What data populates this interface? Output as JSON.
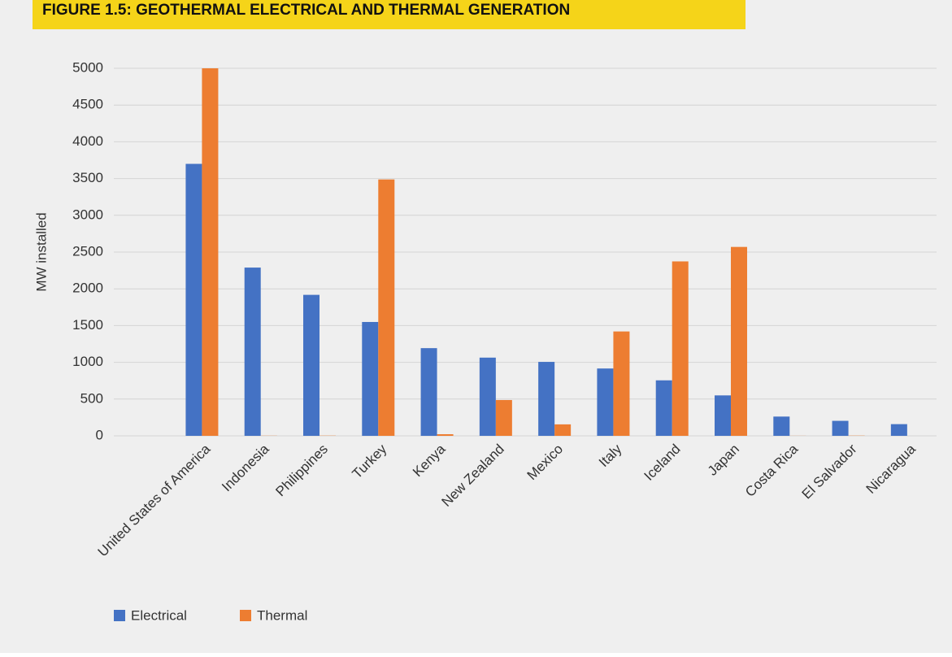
{
  "chart_data": {
    "type": "bar",
    "title": "FIGURE 1.5: GEOTHERMAL ELECTRICAL AND THERMAL GENERATION",
    "y_label": "MW installed",
    "categories": [
      null,
      "United States of America",
      "Indonesia",
      "Philippines",
      "Turkey",
      "Kenya",
      "New Zealand",
      "Mexico",
      "Italy",
      "Iceland",
      "Japan",
      "Costa Rica",
      "El Salvador",
      "Nicaragua"
    ],
    "series": [
      {
        "name": "Electrical",
        "color": "#4472c4",
        "values": [
          null,
          3700,
          2289,
          1918,
          1549,
          1193,
          1064,
          1006,
          916,
          755,
          550,
          262,
          204,
          159
        ]
      },
      {
        "name": "Thermal",
        "color": "#ed7d31",
        "values": [
          null,
          5000,
          2,
          3,
          3488,
          22,
          487,
          156,
          1420,
          2373,
          2570,
          1,
          3,
          0
        ]
      }
    ],
    "ylim": [
      0,
      5000
    ],
    "yticks": [
      0,
      500,
      1000,
      1500,
      2000,
      2500,
      3000,
      3500,
      4000,
      4500,
      5000
    ],
    "grid": true,
    "legend": "bottom-left"
  }
}
